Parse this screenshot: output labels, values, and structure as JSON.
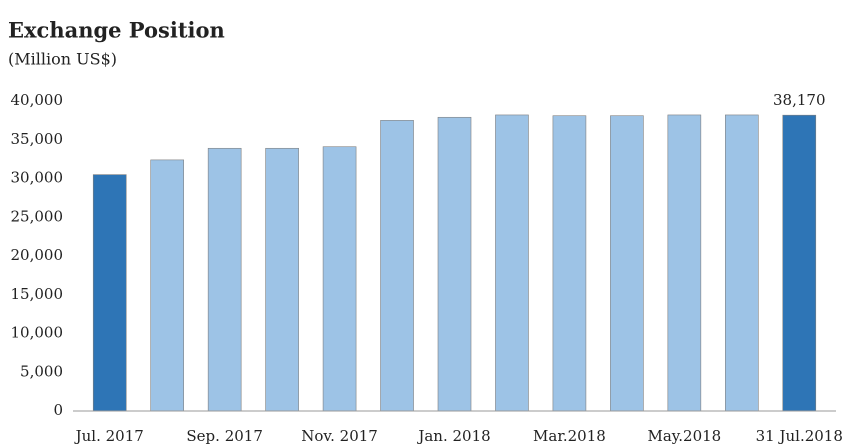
{
  "chart_data": {
    "type": "bar",
    "title": "Exchange Position",
    "subtitle": "(Million US$)",
    "categories": [
      "Jul. 2017",
      null,
      "Sep. 2017",
      null,
      "Nov. 2017",
      null,
      "Jan. 2018",
      null,
      "Mar.2018",
      null,
      "May.2018",
      null,
      "31 Jul.2018"
    ],
    "values": [
      30500,
      32400,
      33900,
      33900,
      34100,
      37500,
      37900,
      38200,
      38100,
      38100,
      38200,
      38200,
      38170
    ],
    "value_labels": [
      null,
      null,
      null,
      null,
      null,
      null,
      null,
      null,
      null,
      null,
      null,
      null,
      "38,170"
    ],
    "colors": [
      "#2e75b6",
      "#9dc3e6",
      "#9dc3e6",
      "#9dc3e6",
      "#9dc3e6",
      "#9dc3e6",
      "#9dc3e6",
      "#9dc3e6",
      "#9dc3e6",
      "#9dc3e6",
      "#9dc3e6",
      "#9dc3e6",
      "#2e75b6"
    ],
    "ylim": [
      0,
      40000
    ],
    "yticks": [
      0,
      {
        "value": 5000,
        "label": "5,000"
      },
      {
        "value": 10000,
        "label": "10,000"
      },
      {
        "value": 15000,
        "label": "15,000"
      },
      {
        "value": 20000,
        "label": "20,000"
      },
      {
        "value": 25000,
        "label": "25,000"
      },
      {
        "value": 30000,
        "label": "30,000"
      },
      {
        "value": 35000,
        "label": "35,000"
      },
      {
        "value": 40000,
        "label": "40,000"
      }
    ],
    "grid": false
  }
}
